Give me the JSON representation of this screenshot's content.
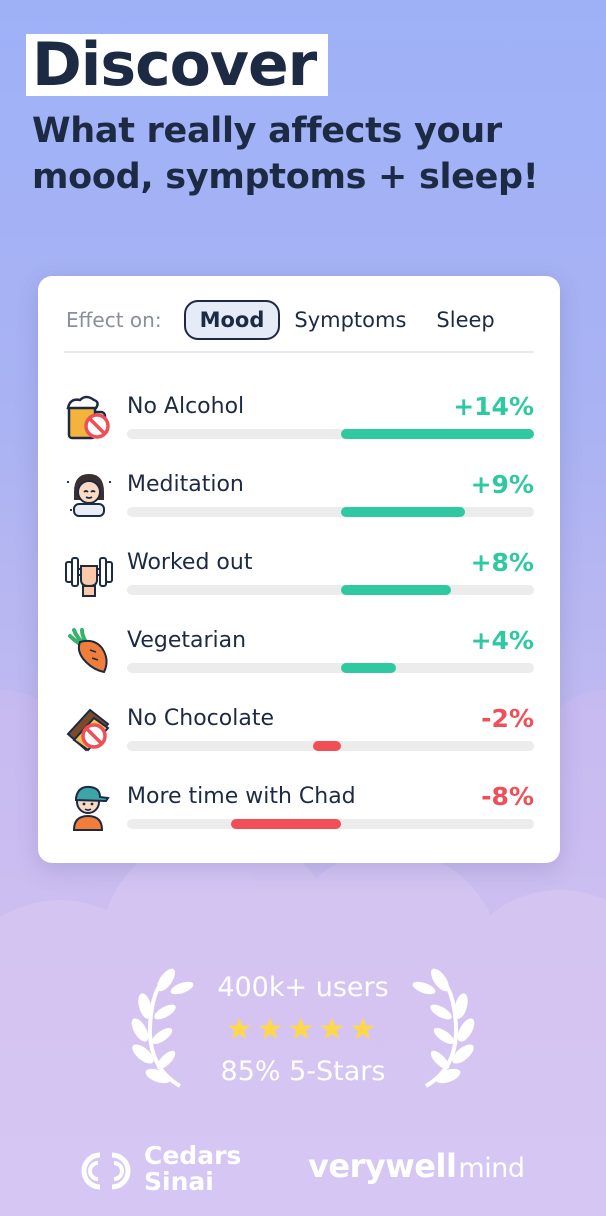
{
  "headline": "Discover",
  "subheadline": "What really affects your mood, symptoms + sleep!",
  "card": {
    "effect_label": "Effect on:",
    "tabs": [
      {
        "label": "Mood",
        "active": true
      },
      {
        "label": "Symptoms",
        "active": false
      },
      {
        "label": "Sleep",
        "active": false
      }
    ],
    "items": [
      {
        "label": "No Alcohol",
        "value": "+14%",
        "effect_percent": 14,
        "icon": "no-alcohol-icon"
      },
      {
        "label": "Meditation",
        "value": "+9%",
        "effect_percent": 9,
        "icon": "meditation-icon"
      },
      {
        "label": "Worked out",
        "value": "+8%",
        "effect_percent": 8,
        "icon": "dumbbell-icon"
      },
      {
        "label": "Vegetarian",
        "value": "+4%",
        "effect_percent": 4,
        "icon": "carrot-icon"
      },
      {
        "label": "No Chocolate",
        "value": "-2%",
        "effect_percent": -2,
        "icon": "no-chocolate-icon"
      },
      {
        "label": "More time with Chad",
        "value": "-8%",
        "effect_percent": -8,
        "icon": "person-cap-icon"
      }
    ]
  },
  "social_proof": {
    "users": "400k+ users",
    "stars": "★★★★★",
    "rating": "85%  5-Stars"
  },
  "logos": {
    "cedars_line1": "Cedars",
    "cedars_line2": "Sinai",
    "verywell": "verywell",
    "mind": "mind"
  },
  "colors": {
    "positive": "#2ec9a0",
    "negative": "#f04f57",
    "text_dark": "#1d2a44",
    "star": "#ffd84a"
  }
}
